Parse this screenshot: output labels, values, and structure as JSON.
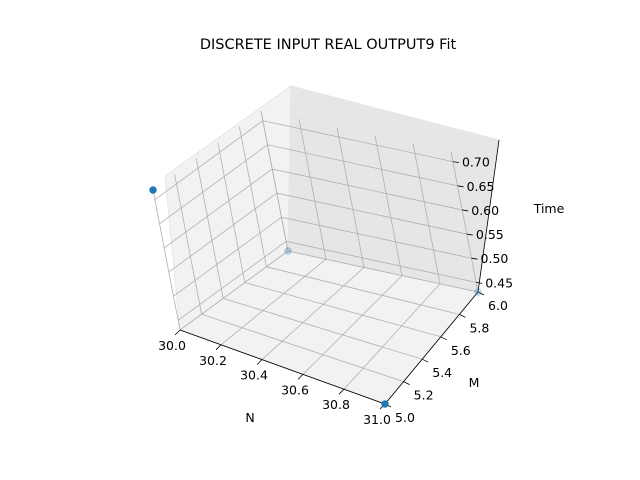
{
  "chart_data": {
    "type": "scatter",
    "projection": "3d",
    "title": "DISCRETE INPUT REAL OUTPUT9 Fit",
    "xlabel": "N",
    "ylabel": "M",
    "zlabel": "Time",
    "xlim": [
      30.0,
      31.0
    ],
    "ylim": [
      5.0,
      6.0
    ],
    "zlim": [
      0.43,
      0.72
    ],
    "xticks": [
      "30.0",
      "30.2",
      "30.4",
      "30.6",
      "30.8",
      "31.0"
    ],
    "yticks": [
      "5.0",
      "5.2",
      "5.4",
      "5.6",
      "5.8",
      "6.0"
    ],
    "zticks": [
      "0.45",
      "0.50",
      "0.55",
      "0.60",
      "0.65",
      "0.70"
    ],
    "marker_color": "#1f77b4",
    "points": [
      {
        "x": 30.0,
        "y": 5.0,
        "z": 0.72
      },
      {
        "x": 31.0,
        "y": 5.0,
        "z": 0.43
      },
      {
        "x": 30.0,
        "y": 6.0,
        "z": 0.43
      },
      {
        "x": 31.0,
        "y": 6.0,
        "z": 0.43
      }
    ]
  }
}
